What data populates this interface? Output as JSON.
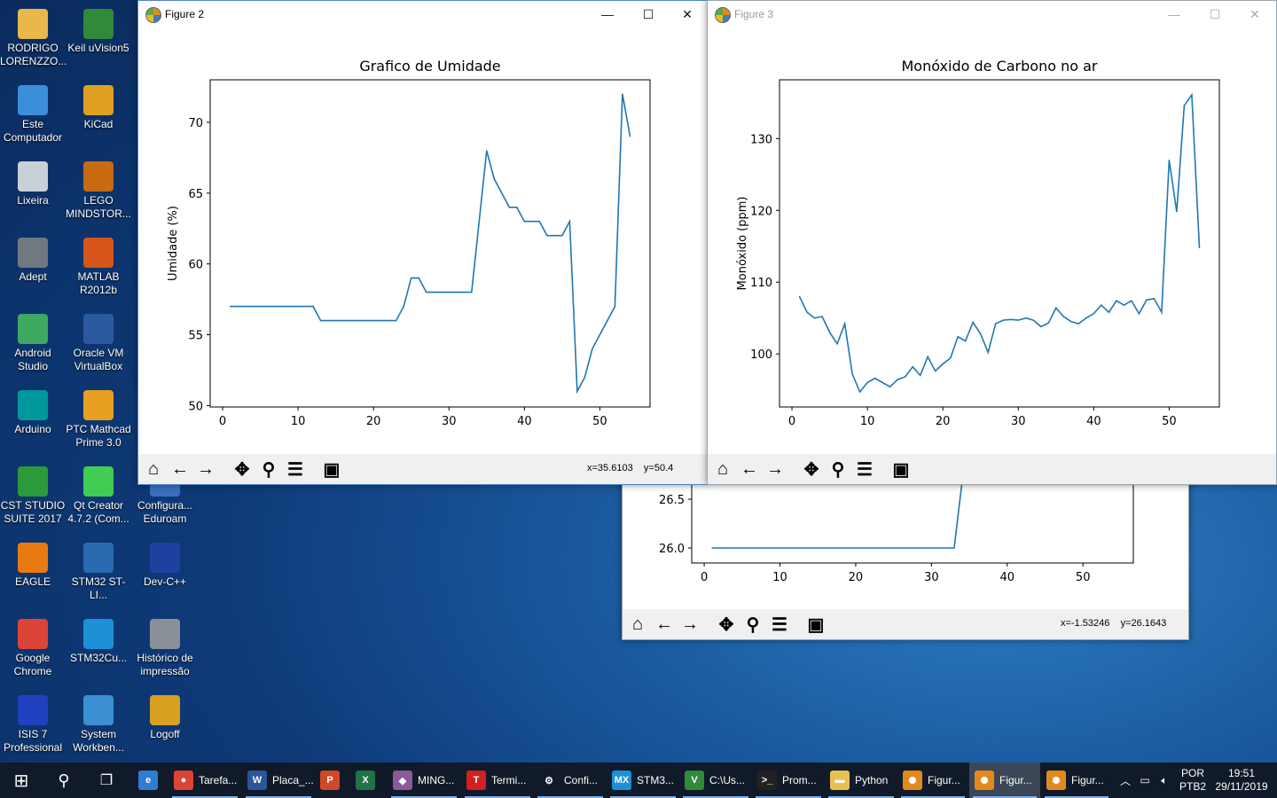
{
  "desktop": {
    "icons": [
      {
        "label": "RODRIGO LORENZZO...",
        "icon": "user-folder-icon",
        "color": "#e8b84a"
      },
      {
        "label": "Keil uVision5",
        "icon": "keil-icon",
        "color": "#2f8a3a"
      },
      {
        "label": "Este Computador",
        "icon": "computer-icon",
        "color": "#3a8fd8"
      },
      {
        "label": "KiCad",
        "icon": "kicad-icon",
        "color": "#e0a020"
      },
      {
        "label": "Lixeira",
        "icon": "recycle-bin-icon",
        "color": "#c8d0d8"
      },
      {
        "label": "LEGO MINDSTOR...",
        "icon": "lego-icon",
        "color": "#c86a10"
      },
      {
        "label": "Adept",
        "icon": "adept-icon",
        "color": "#707880"
      },
      {
        "label": "MATLAB R2012b",
        "icon": "matlab-icon",
        "color": "#d8561a"
      },
      {
        "label": "Android Studio",
        "icon": "android-studio-icon",
        "color": "#3ea860"
      },
      {
        "label": "Oracle VM VirtualBox",
        "icon": "virtualbox-icon",
        "color": "#2c5aa0"
      },
      {
        "label": "Arduino",
        "icon": "arduino-icon",
        "color": "#00979c"
      },
      {
        "label": "PTC Mathcad Prime 3.0",
        "icon": "mathcad-icon",
        "color": "#e8a020"
      },
      {
        "label": "CST STUDIO SUITE 2017",
        "icon": "cst-icon",
        "color": "#2a9a3a"
      },
      {
        "label": "Qt Creator 4.7.2 (Com...",
        "icon": "qt-icon",
        "color": "#41cd52"
      },
      {
        "label": "Configura... Eduroam",
        "icon": "eduroam-icon",
        "color": "#3a70c0"
      },
      {
        "label": "EAGLE",
        "icon": "eagle-icon",
        "color": "#e87a10"
      },
      {
        "label": "STM32 ST-LI...",
        "icon": "stlink-icon",
        "color": "#2a6ab0"
      },
      {
        "label": "Dev-C++",
        "icon": "devcpp-icon",
        "color": "#2040a0"
      },
      {
        "label": "Google Chrome",
        "icon": "chrome-icon",
        "color": "#db4437"
      },
      {
        "label": "STM32Cu...",
        "icon": "stm32cube-icon",
        "color": "#1e90d8"
      },
      {
        "label": "Histórico de impressão",
        "icon": "printer-icon",
        "color": "#8a9098"
      },
      {
        "label": "ISIS 7 Professional",
        "icon": "isis-icon",
        "color": "#2040c0"
      },
      {
        "label": "System Workben...",
        "icon": "system-workbench-icon",
        "color": "#3a90d0"
      },
      {
        "label": "Logoff",
        "icon": "logoff-icon",
        "color": "#d8a020"
      }
    ]
  },
  "windows": {
    "back": {
      "chart_data": {
        "type": "line",
        "x": [
          1,
          33,
          34
        ],
        "y": [
          26.0,
          26.0,
          26.65
        ],
        "xticks": [
          0,
          10,
          20,
          30,
          40,
          50
        ],
        "yticks": [
          26.0,
          26.5
        ],
        "ytick_labels": [
          "26.0",
          "26.5"
        ],
        "xlim": [
          -1.65,
          56.65
        ],
        "color": "#1f77b4"
      },
      "coords": "x=-1.53246    y=26.1643"
    },
    "figure2": {
      "title": "Figure 2",
      "coords": "x=35.6103    y=50.4",
      "chart_data": {
        "type": "line",
        "title": "Grafico de Umidade",
        "xlabel": "",
        "ylabel": "Umidade (%)",
        "x": [
          1,
          2,
          3,
          4,
          5,
          6,
          7,
          8,
          9,
          10,
          11,
          12,
          13,
          14,
          15,
          16,
          17,
          18,
          19,
          20,
          21,
          22,
          23,
          24,
          25,
          26,
          27,
          28,
          29,
          30,
          31,
          32,
          33,
          34,
          35,
          36,
          37,
          38,
          39,
          40,
          41,
          42,
          43,
          44,
          45,
          46,
          47,
          48,
          49,
          50,
          51,
          52,
          53,
          54
        ],
        "y": [
          57,
          57,
          57,
          57,
          57,
          57,
          57,
          57,
          57,
          57,
          57,
          57,
          56,
          56,
          56,
          56,
          56,
          56,
          56,
          56,
          56,
          56,
          56,
          57,
          59,
          59,
          58,
          58,
          58,
          58,
          58,
          58,
          58,
          63,
          68,
          66,
          65,
          64,
          64,
          63,
          63,
          63,
          62,
          62,
          62,
          63,
          51,
          52,
          54,
          55,
          56,
          57,
          72,
          69
        ],
        "xticks": [
          0,
          10,
          20,
          30,
          40,
          50
        ],
        "yticks": [
          50,
          55,
          60,
          65,
          70
        ],
        "xlim": [
          -1.65,
          56.65
        ],
        "ylim": [
          49.9,
          73.0
        ],
        "grid": false,
        "color": "#1f77b4"
      }
    },
    "figure3": {
      "title": "Figure 3",
      "coords": "",
      "chart_data": {
        "type": "line",
        "title": "Monóxido de Carbono no ar",
        "xlabel": "",
        "ylabel": "Monóxido (ppm)",
        "x": [
          1,
          2,
          3,
          4,
          5,
          6,
          7,
          8,
          9,
          10,
          11,
          12,
          13,
          14,
          15,
          16,
          17,
          18,
          19,
          20,
          21,
          22,
          23,
          24,
          25,
          26,
          27,
          28,
          29,
          30,
          31,
          32,
          33,
          34,
          35,
          36,
          37,
          38,
          39,
          40,
          41,
          42,
          43,
          44,
          45,
          46,
          47,
          48,
          49,
          50,
          51,
          52,
          53,
          54
        ],
        "y": [
          108,
          105.8,
          105,
          105.2,
          103,
          101.4,
          104.2,
          97.2,
          94.7,
          96,
          96.6,
          96,
          95.4,
          96.4,
          96.8,
          98.2,
          97,
          99.6,
          97.6,
          98.6,
          99.4,
          102.4,
          101.8,
          104.4,
          102.8,
          100.2,
          104.2,
          104.7,
          104.8,
          104.7,
          105,
          104.7,
          103.8,
          104.3,
          106.4,
          105.2,
          104.5,
          104.2,
          105,
          105.6,
          106.8,
          105.8,
          107.4,
          106.8,
          107.4,
          105.6,
          107.5,
          107.7,
          105.8,
          127,
          119.8,
          134.6,
          136.1,
          114.8
        ],
        "xticks": [
          0,
          10,
          20,
          30,
          40,
          50
        ],
        "yticks": [
          100,
          110,
          120,
          130
        ],
        "xlim": [
          -1.65,
          56.65
        ],
        "ylim": [
          92.6,
          138.2
        ],
        "grid": false,
        "color": "#1f77b4"
      }
    }
  },
  "taskbar": {
    "items": [
      {
        "label": "",
        "icon": "edge-icon",
        "color": "#2d7dd2",
        "glyph": "e"
      },
      {
        "label": "Tarefa...",
        "icon": "chrome-icon",
        "color": "#db4437",
        "glyph": "●"
      },
      {
        "label": "Placa_...",
        "icon": "word-icon",
        "color": "#2b579a",
        "glyph": "W"
      },
      {
        "label": "",
        "icon": "powerpoint-icon",
        "color": "#d24726",
        "glyph": "P"
      },
      {
        "label": "",
        "icon": "excel-icon",
        "color": "#217346",
        "glyph": "X"
      },
      {
        "label": "MING...",
        "icon": "git-icon",
        "color": "#8a5a9a",
        "glyph": "◆"
      },
      {
        "label": "Termi...",
        "icon": "terminal-icon",
        "color": "#d02020",
        "glyph": "T"
      },
      {
        "label": "Confi...",
        "icon": "settings-icon",
        "color": "#101a28",
        "glyph": "⚙"
      },
      {
        "label": "STM3...",
        "icon": "stm32cube-icon",
        "color": "#1e90d8",
        "glyph": "MX"
      },
      {
        "label": "C:\\Us...",
        "icon": "keil-icon",
        "color": "#2f8a3a",
        "glyph": "V"
      },
      {
        "label": "Prom...",
        "icon": "cmd-icon",
        "color": "#222222",
        "glyph": ">_"
      },
      {
        "label": "Python",
        "icon": "folder-icon",
        "color": "#e8c050",
        "glyph": "▬"
      },
      {
        "label": "Figur...",
        "icon": "matplotlib-icon",
        "color": "#e08a1e",
        "glyph": "✺"
      },
      {
        "label": "Figur...",
        "icon": "matplotlib-icon",
        "color": "#e08a1e",
        "glyph": "✺"
      },
      {
        "label": "Figur...",
        "icon": "matplotlib-icon",
        "color": "#e08a1e",
        "glyph": "✺"
      }
    ],
    "lang": "POR",
    "layout": "PTB2",
    "time": "19:51",
    "date": "29/11/2019"
  }
}
